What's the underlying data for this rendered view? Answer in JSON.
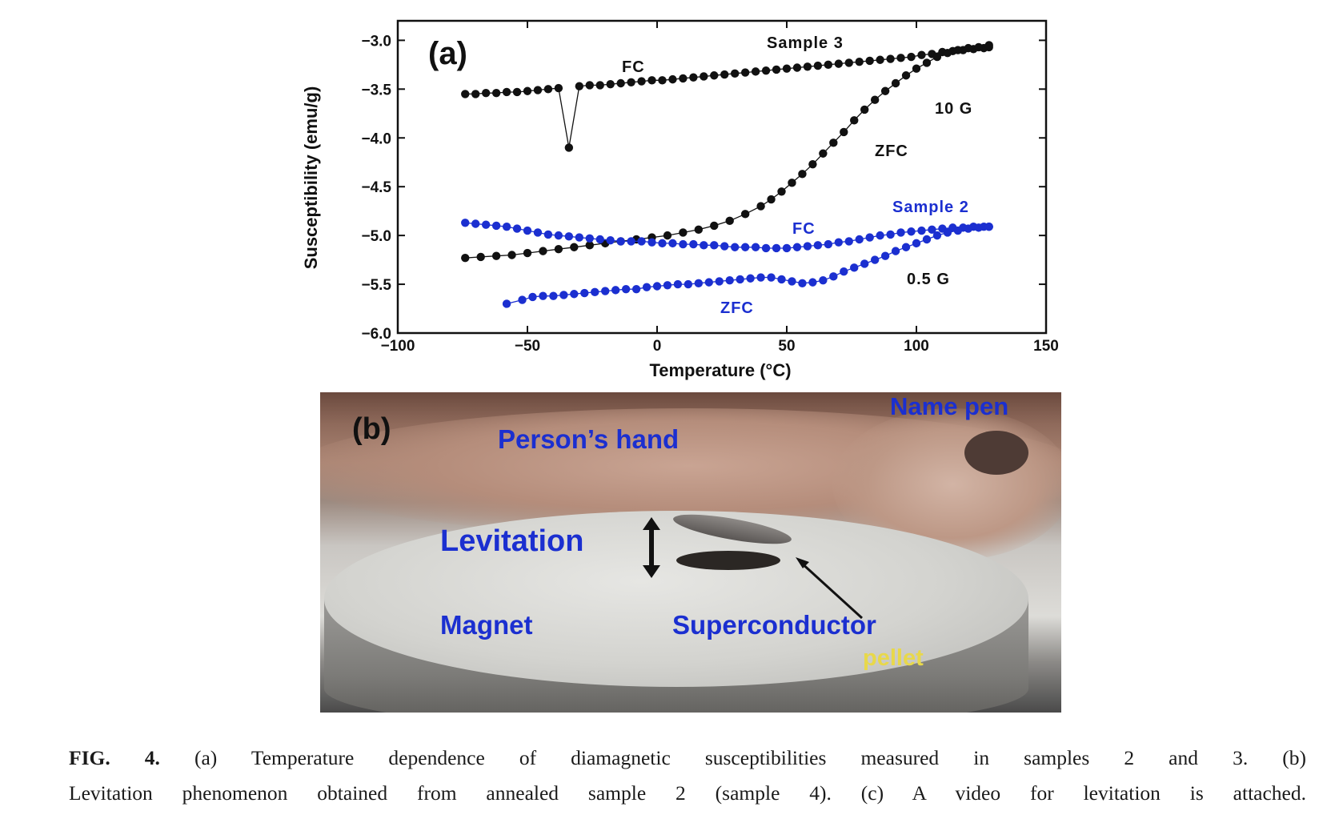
{
  "panel_a_label": "(a)",
  "panel_b_label": "(b)",
  "chart_data": {
    "type": "scatter",
    "xlabel": "Temperature (°C)",
    "ylabel": "Susceptibility (emu/g)",
    "xlim": [
      -100,
      150
    ],
    "ylim": [
      -6.0,
      -2.8
    ],
    "xticks": [
      -100,
      -50,
      0,
      50,
      100,
      150
    ],
    "yticks": [
      -3.0,
      -3.5,
      -4.0,
      -4.5,
      -5.0,
      -5.5,
      -6.0
    ],
    "xtick_labels": [
      "−100",
      "−50",
      "0",
      "50",
      "100",
      "150"
    ],
    "ytick_labels": [
      "−3.0",
      "−3.5",
      "−4.0",
      "−4.5",
      "−5.0",
      "−5.5",
      "−6.0"
    ],
    "colors": {
      "sample3": "#111111",
      "sample2": "#1b2fd0"
    },
    "series": [
      {
        "group": "sample3",
        "x": [
          -74,
          -70,
          -66,
          -62,
          -58,
          -54,
          -50,
          -46,
          -42,
          -38,
          -34,
          -30,
          -26,
          -22,
          -18,
          -14,
          -10,
          -6,
          -2,
          2,
          6,
          10,
          14,
          18,
          22,
          26,
          30,
          34,
          38,
          42,
          46,
          50,
          54,
          58,
          62,
          66,
          70,
          74,
          78,
          82,
          86,
          90,
          94,
          98,
          102,
          106,
          110,
          114,
          118,
          122,
          126,
          128
        ],
        "values": [
          -3.55,
          -3.55,
          -3.54,
          -3.54,
          -3.53,
          -3.53,
          -3.52,
          -3.51,
          -3.5,
          -3.49,
          -4.1,
          -3.47,
          -3.46,
          -3.46,
          -3.45,
          -3.44,
          -3.43,
          -3.42,
          -3.41,
          -3.41,
          -3.4,
          -3.39,
          -3.38,
          -3.37,
          -3.36,
          -3.35,
          -3.34,
          -3.33,
          -3.32,
          -3.31,
          -3.3,
          -3.29,
          -3.28,
          -3.27,
          -3.26,
          -3.25,
          -3.24,
          -3.23,
          -3.22,
          -3.21,
          -3.2,
          -3.19,
          -3.18,
          -3.17,
          -3.15,
          -3.14,
          -3.12,
          -3.11,
          -3.1,
          -3.09,
          -3.08,
          -3.07
        ]
      },
      {
        "group": "sample3",
        "x": [
          -74,
          -68,
          -62,
          -56,
          -50,
          -44,
          -38,
          -32,
          -26,
          -20,
          -14,
          -8,
          -2,
          4,
          10,
          16,
          22,
          28,
          34,
          40,
          44,
          48,
          52,
          56,
          60,
          64,
          68,
          72,
          76,
          80,
          84,
          88,
          92,
          96,
          100,
          104,
          108,
          112,
          116,
          120,
          124,
          128
        ],
        "values": [
          -5.23,
          -5.22,
          -5.21,
          -5.2,
          -5.18,
          -5.16,
          -5.14,
          -5.12,
          -5.1,
          -5.08,
          -5.06,
          -5.04,
          -5.02,
          -5.0,
          -4.97,
          -4.94,
          -4.9,
          -4.85,
          -4.78,
          -4.7,
          -4.63,
          -4.55,
          -4.46,
          -4.37,
          -4.27,
          -4.16,
          -4.05,
          -3.94,
          -3.82,
          -3.71,
          -3.61,
          -3.52,
          -3.44,
          -3.36,
          -3.29,
          -3.23,
          -3.17,
          -3.13,
          -3.1,
          -3.08,
          -3.07,
          -3.05
        ]
      },
      {
        "group": "sample2",
        "x": [
          -74,
          -70,
          -66,
          -62,
          -58,
          -54,
          -50,
          -46,
          -42,
          -38,
          -34,
          -30,
          -26,
          -22,
          -18,
          -14,
          -10,
          -6,
          -2,
          2,
          6,
          10,
          14,
          18,
          22,
          26,
          30,
          34,
          38,
          42,
          46,
          50,
          54,
          58,
          62,
          66,
          70,
          74,
          78,
          82,
          86,
          90,
          94,
          98,
          102,
          106,
          110,
          114,
          118,
          122,
          126,
          128
        ],
        "values": [
          -4.87,
          -4.88,
          -4.89,
          -4.9,
          -4.91,
          -4.93,
          -4.95,
          -4.97,
          -4.99,
          -5.0,
          -5.01,
          -5.02,
          -5.03,
          -5.04,
          -5.05,
          -5.06,
          -5.06,
          -5.06,
          -5.07,
          -5.08,
          -5.08,
          -5.09,
          -5.09,
          -5.1,
          -5.1,
          -5.11,
          -5.12,
          -5.12,
          -5.12,
          -5.13,
          -5.13,
          -5.13,
          -5.12,
          -5.11,
          -5.1,
          -5.09,
          -5.07,
          -5.06,
          -5.04,
          -5.02,
          -5.0,
          -4.99,
          -4.97,
          -4.96,
          -4.95,
          -4.94,
          -4.93,
          -4.92,
          -4.92,
          -4.91,
          -4.91,
          -4.91
        ]
      },
      {
        "group": "sample2",
        "x": [
          -58,
          -52,
          -48,
          -44,
          -40,
          -36,
          -32,
          -28,
          -24,
          -20,
          -16,
          -12,
          -8,
          -4,
          0,
          4,
          8,
          12,
          16,
          20,
          24,
          28,
          32,
          36,
          40,
          44,
          48,
          52,
          56,
          60,
          64,
          68,
          72,
          76,
          80,
          84,
          88,
          92,
          96,
          100,
          104,
          108,
          112,
          116,
          120,
          124,
          128
        ],
        "values": [
          -5.7,
          -5.66,
          -5.63,
          -5.62,
          -5.62,
          -5.61,
          -5.6,
          -5.59,
          -5.58,
          -5.57,
          -5.56,
          -5.55,
          -5.55,
          -5.53,
          -5.52,
          -5.51,
          -5.5,
          -5.5,
          -5.49,
          -5.48,
          -5.47,
          -5.46,
          -5.45,
          -5.44,
          -5.43,
          -5.43,
          -5.45,
          -5.47,
          -5.49,
          -5.48,
          -5.46,
          -5.42,
          -5.37,
          -5.33,
          -5.29,
          -5.25,
          -5.21,
          -5.16,
          -5.12,
          -5.08,
          -5.04,
          -5.0,
          -4.97,
          -4.95,
          -4.93,
          -4.92,
          -4.91
        ]
      }
    ],
    "annotations": {
      "sample3": "Sample 3",
      "fc3": "FC",
      "field3": "10 G",
      "zfc3": "ZFC",
      "sample2": "Sample 2",
      "fc2": "FC",
      "field2": "0.5 G",
      "zfc2": "ZFC"
    }
  },
  "photo_labels": {
    "hand": "Person’s hand",
    "pen": "Name pen",
    "levitation": "Levitation",
    "magnet": "Magnet",
    "superconductor": "Superconductor",
    "pellet": "pellet"
  },
  "caption": {
    "fig": "FIG. 4.",
    "line1": "(a) Temperature dependence of diamagnetic susceptibilities measured in samples 2 and 3. (b)",
    "line2": "Levitation phenomenon obtained from annealed sample 2 (sample 4). (c) A video for levitation is attached."
  }
}
